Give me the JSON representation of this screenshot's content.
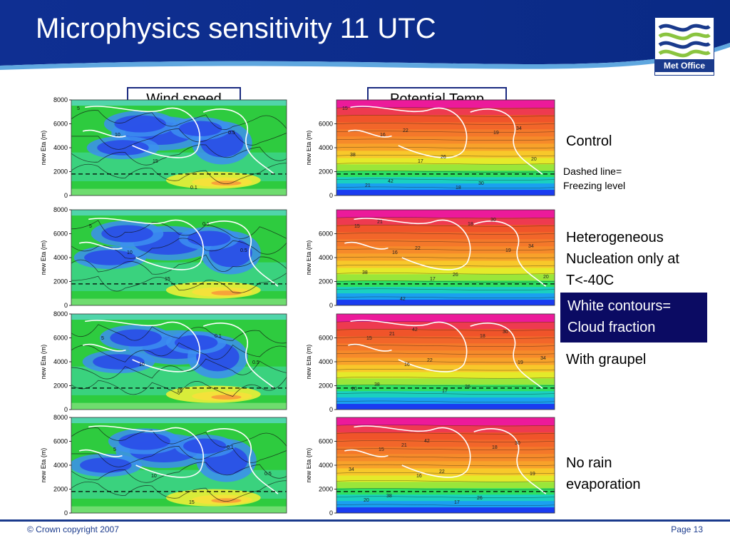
{
  "slide": {
    "title": "Microphysics sensitivity 11 UTC",
    "logo_text": "Met Office",
    "footer_left": "© Crown copyright 2007",
    "footer_right": "Page 13",
    "brand_color": "#1a3a8c"
  },
  "columns": {
    "wind": "Wind speed",
    "theta": "Potential Temp"
  },
  "rows": [
    {
      "label": "Control",
      "note1": "Dashed line=",
      "note2": "Freezing level"
    },
    {
      "label_lines": [
        "Heterogeneous",
        "Nucleation only at",
        "T<-40C"
      ]
    },
    {
      "label": "With graupel"
    },
    {
      "label_lines": [
        "No rain",
        "evaporation"
      ]
    }
  ],
  "legend_box": {
    "line1": "White contours=",
    "line2": "Cloud fraction"
  },
  "chart_data": [
    {
      "type": "heatmap",
      "variable": "wind",
      "ylabel": "new Eta (m)",
      "yticks_wind": [
        0,
        2000,
        4000,
        6000,
        8000
      ],
      "yticks_theta": [
        0,
        2000,
        4000,
        6000
      ],
      "ylim": [
        0,
        8000
      ],
      "freezing_level_m": 1800,
      "wind_contour_labels": [
        "5",
        "10",
        "15",
        "0.1",
        "0.5"
      ],
      "theta_contour_labels": [
        "15",
        "16",
        "17",
        "18",
        "19",
        "20",
        "21",
        "22",
        "26",
        "30",
        "34",
        "38",
        "42"
      ]
    }
  ]
}
